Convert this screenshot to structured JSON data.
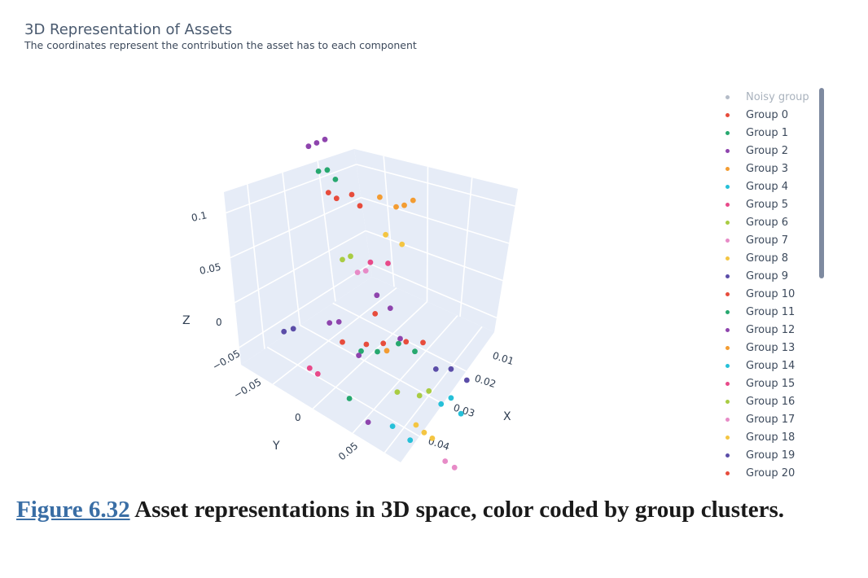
{
  "chart_data": {
    "type": "scatter",
    "title": "3D Representation of Assets",
    "subtitle": "The coordinates represent the contribution the asset has to each component",
    "xlabel": "X",
    "ylabel": "Y",
    "zlabel": "Z",
    "x_ticks": [
      "0.01",
      "0.02",
      "0.03",
      "0.04"
    ],
    "y_ticks": [
      "−0.05",
      "0",
      "0.05"
    ],
    "z_ticks": [
      "0.1",
      "0.05",
      "0",
      "−0.05"
    ],
    "legend_placement": "right",
    "series": [
      {
        "name": "Noisy group",
        "color": "#b4bcc8"
      },
      {
        "name": "Group 0",
        "color": "#e74c3c",
        "points": [
          [
            0.012,
            0.01,
            0.09
          ],
          [
            0.014,
            0.012,
            0.088
          ],
          [
            0.018,
            0.014,
            0.092
          ],
          [
            0.02,
            0.016,
            0.087
          ],
          [
            0.016,
            0.01,
            0.01
          ],
          [
            0.022,
            0.015,
            0.012
          ],
          [
            0.026,
            0.02,
            0.015
          ],
          [
            0.024,
            0.018,
            0.03
          ]
        ]
      },
      {
        "name": "Group 1",
        "color": "#27a86f",
        "points": [
          [
            0.01,
            0.005,
            0.1
          ],
          [
            0.012,
            0.008,
            0.102
          ],
          [
            0.014,
            0.01,
            0.098
          ],
          [
            0.02,
            0.018,
            0.008
          ],
          [
            0.024,
            0.022,
            0.01
          ],
          [
            0.018,
            0.01,
            -0.02
          ]
        ]
      },
      {
        "name": "Group 2",
        "color": "#8e44ad",
        "points": [
          [
            0.008,
            0.0,
            0.112
          ],
          [
            0.01,
            0.002,
            0.115
          ],
          [
            0.012,
            0.004,
            0.118
          ],
          [
            0.025,
            0.015,
            0.04
          ],
          [
            0.028,
            0.02,
            0.035
          ],
          [
            0.03,
            0.025,
            0.02
          ],
          [
            0.022,
            0.018,
            -0.03
          ],
          [
            0.02,
            0.014,
            0.005
          ]
        ]
      },
      {
        "name": "Group 3",
        "color": "#f39c32",
        "points": [
          [
            0.024,
            0.026,
            0.095
          ],
          [
            0.028,
            0.03,
            0.092
          ],
          [
            0.03,
            0.032,
            0.094
          ],
          [
            0.032,
            0.035,
            0.098
          ],
          [
            0.026,
            0.026,
            0.012
          ]
        ]
      },
      {
        "name": "Group 4",
        "color": "#26c0d8",
        "points": [
          [
            0.03,
            0.012,
            -0.03
          ],
          [
            0.034,
            0.018,
            -0.035
          ],
          [
            0.04,
            0.035,
            -0.01
          ],
          [
            0.042,
            0.04,
            -0.005
          ],
          [
            0.044,
            0.045,
            -0.012
          ]
        ]
      },
      {
        "name": "Group 5",
        "color": "#e84a8a",
        "points": [
          [
            0.01,
            -0.01,
            -0.01
          ],
          [
            0.012,
            -0.008,
            -0.012
          ],
          [
            0.022,
            0.022,
            0.058
          ],
          [
            0.026,
            0.028,
            0.06
          ]
        ]
      },
      {
        "name": "Group 6",
        "color": "#a9cc43",
        "points": [
          [
            0.016,
            0.01,
            0.055
          ],
          [
            0.018,
            0.012,
            0.058
          ],
          [
            0.03,
            0.02,
            -0.01
          ],
          [
            0.034,
            0.034,
            -0.008
          ],
          [
            0.036,
            0.038,
            -0.004
          ]
        ]
      },
      {
        "name": "Group 7",
        "color": "#e78bc7",
        "points": [
          [
            0.02,
            0.012,
            0.05
          ],
          [
            0.022,
            0.014,
            0.052
          ],
          [
            0.04,
            0.042,
            -0.04
          ],
          [
            0.042,
            0.046,
            -0.042
          ]
        ]
      },
      {
        "name": "Group 8",
        "color": "#f4c542",
        "points": [
          [
            0.026,
            0.024,
            0.075
          ],
          [
            0.03,
            0.028,
            0.072
          ],
          [
            0.034,
            0.028,
            -0.025
          ],
          [
            0.036,
            0.03,
            -0.028
          ],
          [
            0.038,
            0.032,
            -0.03
          ]
        ]
      },
      {
        "name": "Group 9",
        "color": "#5b4da8",
        "points": [
          [
            0.006,
            -0.03,
            0.005
          ],
          [
            0.008,
            -0.026,
            0.008
          ],
          [
            0.036,
            0.05,
            0.01
          ],
          [
            0.04,
            0.052,
            0.012
          ],
          [
            0.044,
            0.055,
            0.008
          ]
        ]
      },
      {
        "name": "Group 10",
        "color": "#e74c3c",
        "points": [
          [
            0.03,
            0.035,
            0.02
          ],
          [
            0.034,
            0.04,
            0.022
          ]
        ]
      },
      {
        "name": "Group 11",
        "color": "#27a86f",
        "points": [
          [
            0.028,
            0.034,
            0.018
          ],
          [
            0.032,
            0.038,
            0.016
          ]
        ]
      },
      {
        "name": "Group 12",
        "color": "#8e44ad",
        "points": [
          [
            0.014,
            0.0,
            0.018
          ],
          [
            0.016,
            0.004,
            0.02
          ]
        ]
      },
      {
        "name": "Group 13",
        "color": "#f39c32"
      },
      {
        "name": "Group 14",
        "color": "#26c0d8"
      },
      {
        "name": "Group 15",
        "color": "#e84a8a"
      },
      {
        "name": "Group 16",
        "color": "#a9cc43"
      },
      {
        "name": "Group 17",
        "color": "#e78bc7"
      },
      {
        "name": "Group 18",
        "color": "#f4c542"
      },
      {
        "name": "Group 19",
        "color": "#5b4da8"
      },
      {
        "name": "Group 20",
        "color": "#e74c3c"
      }
    ]
  },
  "caption": {
    "figure_ref": "Figure 6.32",
    "text": " Asset representations in 3D space, color coded by group clusters."
  }
}
